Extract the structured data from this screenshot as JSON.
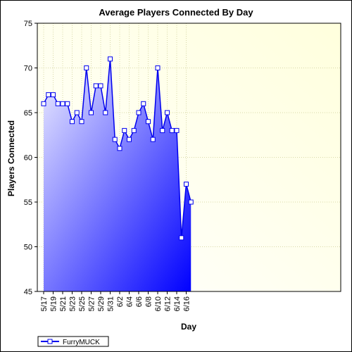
{
  "chart_data": {
    "type": "area",
    "title": "Average Players Connected By Day",
    "xlabel": "Day",
    "ylabel": "Players Connected",
    "ylim": [
      45,
      75
    ],
    "yticks": [
      45,
      50,
      55,
      60,
      65,
      70,
      75
    ],
    "grid": true,
    "legend_position": "bottom-left",
    "colors": {
      "line": "#0000ee",
      "fill_light": "#eeeeff",
      "fill_dark": "#0000ff",
      "background_light": "#ffffff",
      "background_dark": "#ffffdd",
      "grid": "#d8d8a8"
    },
    "categories": [
      "5/17",
      "5/18",
      "5/19",
      "5/20",
      "5/21",
      "5/22",
      "5/23",
      "5/24",
      "5/25",
      "5/26",
      "5/27",
      "5/28",
      "5/29",
      "5/30",
      "5/31",
      "6/1",
      "6/2",
      "6/3",
      "6/4",
      "6/5",
      "6/6",
      "6/7",
      "6/8",
      "6/9",
      "6/10",
      "6/11",
      "6/12",
      "6/13",
      "6/14",
      "6/15",
      "6/16",
      "6/17"
    ],
    "xtick_labels": [
      "5/17",
      "5/19",
      "5/21",
      "5/23",
      "5/25",
      "5/27",
      "5/29",
      "5/31",
      "6/2",
      "6/4",
      "6/6",
      "6/8",
      "6/10",
      "6/12",
      "6/14",
      "6/16"
    ],
    "series": [
      {
        "name": "FurryMUCK",
        "values": [
          66,
          67,
          67,
          66,
          66,
          66,
          64,
          65,
          64,
          70,
          65,
          68,
          68,
          65,
          71,
          62,
          61,
          63,
          62,
          63,
          65,
          66,
          64,
          62,
          70,
          63,
          65,
          63,
          63,
          51,
          57,
          55
        ]
      }
    ]
  }
}
